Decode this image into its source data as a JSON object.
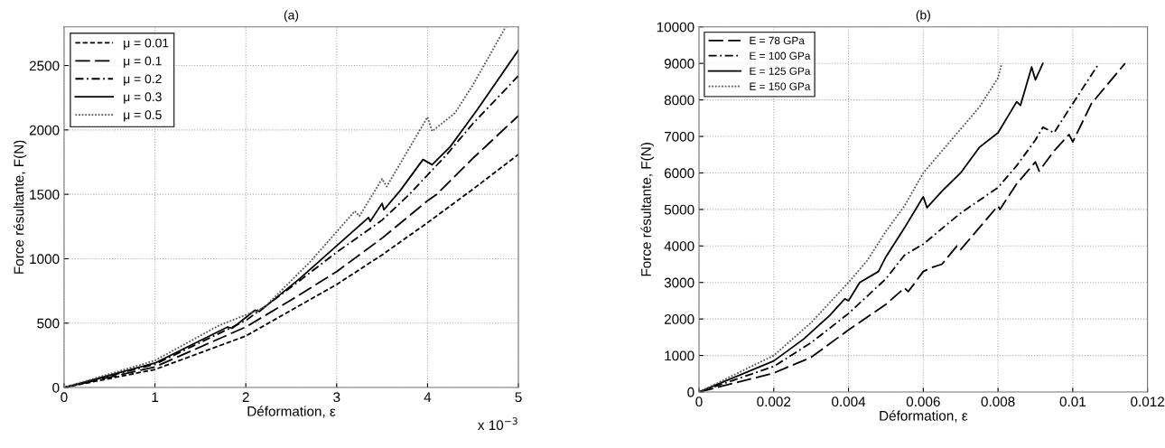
{
  "chart_data": [
    {
      "type": "line",
      "title": "(a)",
      "xlabel": "Déformation, ε",
      "ylabel": "Force résultante, F(N)",
      "xlim": [
        0,
        5
      ],
      "ylim": [
        0,
        2800
      ],
      "xticks": [
        0,
        1,
        2,
        3,
        4,
        5
      ],
      "yticks": [
        0,
        500,
        1000,
        1500,
        2000,
        2500
      ],
      "grid": true,
      "legend": "top left",
      "annotations": [
        "x 10$^{−3}$"
      ],
      "series": [
        {
          "name": "μ = 0.01",
          "color": "#000000",
          "line_style": "dashed",
          "x": [
            0,
            1,
            2,
            2.5,
            3,
            3.5,
            4,
            4.5,
            5
          ],
          "values": [
            0,
            140,
            400,
            600,
            800,
            1030,
            1280,
            1540,
            1810
          ]
        },
        {
          "name": "μ = 0.1",
          "color": "#000000",
          "line_style": "longdashed",
          "x": [
            0,
            1,
            2,
            2.5,
            3,
            3.5,
            4,
            4.1,
            4.5,
            5
          ],
          "values": [
            0,
            160,
            470,
            680,
            900,
            1160,
            1450,
            1500,
            1780,
            2110
          ]
        },
        {
          "name": "μ = 0.2",
          "color": "#000000",
          "line_style": "dashdot",
          "x": [
            0,
            1,
            2,
            2.5,
            3,
            3.5,
            3.8,
            4,
            4.2,
            4.5,
            5
          ],
          "values": [
            0,
            180,
            520,
            780,
            1050,
            1300,
            1500,
            1650,
            1800,
            2050,
            2420
          ]
        },
        {
          "name": "μ = 0.3",
          "color": "#000000",
          "line_style": "solid",
          "x": [
            0,
            1,
            1.8,
            1.85,
            2.1,
            2.15,
            2.6,
            3,
            3.35,
            3.37,
            3.5,
            3.52,
            3.7,
            3.95,
            4.05,
            4.25,
            4.55,
            5
          ],
          "values": [
            0,
            190,
            470,
            460,
            600,
            590,
            850,
            1100,
            1320,
            1290,
            1430,
            1380,
            1530,
            1770,
            1730,
            1870,
            2160,
            2620
          ]
        },
        {
          "name": "μ = 0.5",
          "color": "#555555",
          "line_style": "dotted",
          "x": [
            0,
            1,
            1.7,
            2.2,
            2.7,
            3.2,
            3.25,
            3.5,
            3.55,
            4,
            4.05,
            4.3,
            4.5,
            4.86
          ],
          "values": [
            0,
            210,
            480,
            620,
            970,
            1370,
            1330,
            1620,
            1560,
            2100,
            1990,
            2130,
            2350,
            2800
          ]
        }
      ]
    },
    {
      "type": "line",
      "title": "(b)",
      "xlabel": "Déformation, ε",
      "ylabel": "Force résultante, F(N)",
      "xlim": [
        0,
        0.012
      ],
      "ylim": [
        0,
        10000
      ],
      "xticks": [
        0,
        0.002,
        0.004,
        0.006,
        0.008,
        0.01,
        0.012
      ],
      "yticks": [
        0,
        1000,
        2000,
        3000,
        4000,
        5000,
        6000,
        7000,
        8000,
        9000,
        10000
      ],
      "grid": true,
      "legend": "top left",
      "series": [
        {
          "name": "E = 78 GPa",
          "color": "#000000",
          "line_style": "longdashed",
          "x": [
            0,
            0.002,
            0.003,
            0.004,
            0.005,
            0.0055,
            0.0056,
            0.006,
            0.0062,
            0.0065,
            0.0069,
            0.007,
            0.0075,
            0.008,
            0.00805,
            0.0085,
            0.009,
            0.0091,
            0.0095,
            0.0099,
            0.01,
            0.0105,
            0.0114
          ],
          "values": [
            0,
            520,
            950,
            1700,
            2400,
            2850,
            2750,
            3300,
            3400,
            3500,
            4000,
            3900,
            4500,
            5100,
            5000,
            5700,
            6300,
            6050,
            6600,
            7050,
            6850,
            7900,
            9000
          ]
        },
        {
          "name": "E = 100 GPa",
          "color": "#000000",
          "line_style": "dashdot",
          "x": [
            0,
            0.002,
            0.003,
            0.004,
            0.005,
            0.0055,
            0.006,
            0.007,
            0.008,
            0.0085,
            0.009,
            0.0092,
            0.0095,
            0.01,
            0.0107
          ],
          "values": [
            0,
            700,
            1350,
            2150,
            3100,
            3750,
            4050,
            4900,
            5600,
            6200,
            6900,
            7250,
            7100,
            7900,
            9000
          ]
        },
        {
          "name": "E = 125 GPa",
          "color": "#000000",
          "line_style": "solid",
          "x": [
            0,
            0.002,
            0.0028,
            0.0035,
            0.0039,
            0.004,
            0.0043,
            0.0048,
            0.005,
            0.0055,
            0.006,
            0.0061,
            0.0065,
            0.007,
            0.0075,
            0.008,
            0.0085,
            0.0086,
            0.0089,
            0.009,
            0.0092
          ],
          "values": [
            0,
            850,
            1450,
            2100,
            2550,
            2500,
            3000,
            3300,
            3700,
            4500,
            5350,
            5050,
            5500,
            6000,
            6700,
            7100,
            7950,
            7850,
            8900,
            8550,
            9000
          ]
        },
        {
          "name": "E = 150 GPa",
          "color": "#555555",
          "line_style": "dotted",
          "x": [
            0,
            0.002,
            0.003,
            0.004,
            0.0045,
            0.005,
            0.0055,
            0.006,
            0.0065,
            0.007,
            0.0075,
            0.008,
            0.0081
          ],
          "values": [
            0,
            1000,
            1900,
            3000,
            3600,
            4400,
            5100,
            6000,
            6600,
            7200,
            7800,
            8600,
            9000
          ]
        }
      ]
    }
  ]
}
